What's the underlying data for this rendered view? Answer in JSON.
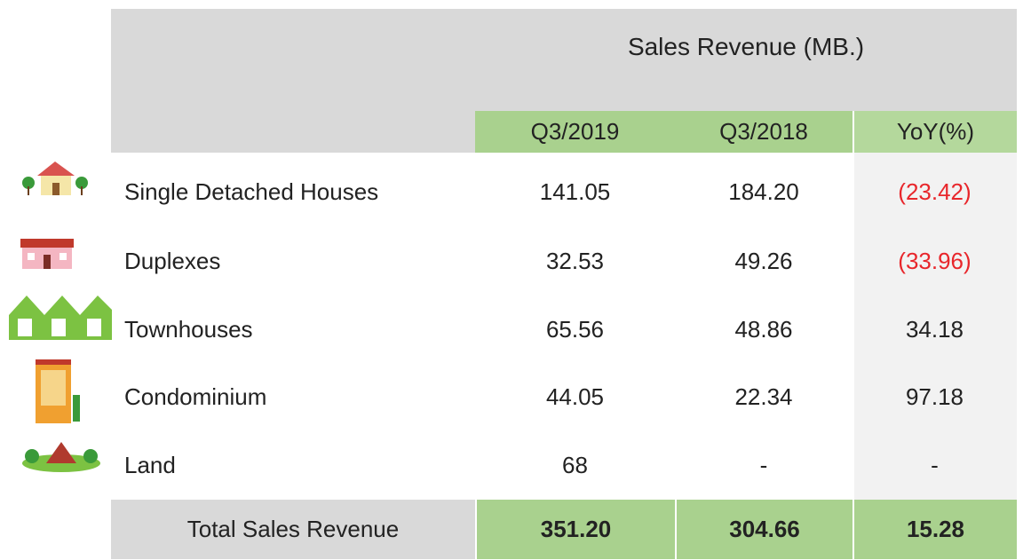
{
  "header": {
    "title": "Sales Revenue (MB.)"
  },
  "table": {
    "columns": [
      "Q3/2019",
      "Q3/2018",
      "YoY(%)"
    ],
    "rows": [
      [
        "Single Detached Houses",
        "141.05",
        "184.20",
        "(23.42)"
      ],
      [
        "Duplexes",
        "32.53",
        "49.26",
        "(33.96)"
      ],
      [
        "Townhouses",
        "65.56",
        "48.86",
        "34.18"
      ],
      [
        "Condominium",
        "44.05",
        "22.34",
        "97.18"
      ],
      [
        "Land",
        "68",
        "-",
        "-"
      ]
    ],
    "total": [
      "Total Sales Revenue",
      "351.20",
      "304.66",
      "15.28"
    ]
  }
}
